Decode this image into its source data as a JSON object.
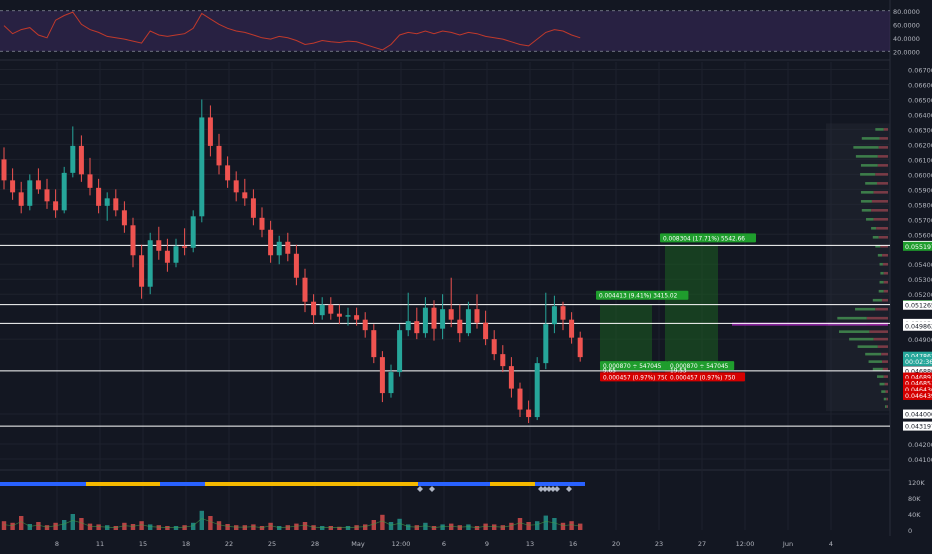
{
  "colors": {
    "bg": "#131722",
    "up": "#26a69a",
    "down": "#ef5350",
    "grid": "#1e222d",
    "axis_text": "#b2b5be",
    "rsi_line": "#c0392b",
    "rsi_band": "#3b2a5c",
    "hline": "#ffffff",
    "profile_up": "#3d7d4a",
    "profile_down": "#7a3b46",
    "profile_poc": "#9c27b0",
    "profile_window": "#2a2e39",
    "range_green": "#1b5e20",
    "label_green": "#1f9d2d",
    "label_red": "#d50000",
    "strip_yellow": "#f5b900",
    "strip_blue": "#2962ff",
    "markers": "#b0b6c3"
  },
  "rsi_panel": {
    "tick_labels": [
      "80.0000",
      "60.0000",
      "40.0000",
      "20.0000"
    ]
  },
  "volume_panel": {
    "tick_labels": [
      "120K",
      "80K",
      "40K",
      "0"
    ]
  },
  "chart_data": {
    "type": "candlestick",
    "title": "",
    "x_tick_labels": [
      "8",
      "11",
      "15",
      "18",
      "22",
      "25",
      "28",
      "May",
      "12:00",
      "6",
      "9",
      "13",
      "16",
      "20",
      "23",
      "27",
      "12:00",
      "Jun",
      "4"
    ],
    "y_tick_labels": [
      "0.067000",
      "0.066000",
      "0.065000",
      "0.064000",
      "0.063000",
      "0.062000",
      "0.061000",
      "0.060000",
      "0.059000",
      "0.058000",
      "0.057000",
      "0.056000",
      "0.054000",
      "0.053000",
      "0.052000",
      "0.049000",
      "0.044000",
      "0.042000",
      "0.041000"
    ],
    "ylim": [
      0.0408,
      0.0675
    ],
    "grid": true,
    "candles": [
      {
        "o": 0.061,
        "h": 0.0618,
        "l": 0.059,
        "c": 0.0596
      },
      {
        "o": 0.0596,
        "h": 0.0604,
        "l": 0.0583,
        "c": 0.0588
      },
      {
        "o": 0.0588,
        "h": 0.0595,
        "l": 0.0574,
        "c": 0.0579
      },
      {
        "o": 0.0579,
        "h": 0.06,
        "l": 0.0576,
        "c": 0.0596
      },
      {
        "o": 0.0596,
        "h": 0.0604,
        "l": 0.0587,
        "c": 0.059
      },
      {
        "o": 0.059,
        "h": 0.0597,
        "l": 0.0577,
        "c": 0.0582
      },
      {
        "o": 0.0582,
        "h": 0.059,
        "l": 0.0571,
        "c": 0.0576
      },
      {
        "o": 0.0576,
        "h": 0.0605,
        "l": 0.0574,
        "c": 0.0601
      },
      {
        "o": 0.0601,
        "h": 0.0632,
        "l": 0.0598,
        "c": 0.0619
      },
      {
        "o": 0.0619,
        "h": 0.0626,
        "l": 0.0595,
        "c": 0.06
      },
      {
        "o": 0.06,
        "h": 0.0611,
        "l": 0.0586,
        "c": 0.0591
      },
      {
        "o": 0.0591,
        "h": 0.0597,
        "l": 0.0574,
        "c": 0.0579
      },
      {
        "o": 0.0579,
        "h": 0.0588,
        "l": 0.0569,
        "c": 0.0584
      },
      {
        "o": 0.0584,
        "h": 0.059,
        "l": 0.0572,
        "c": 0.0576
      },
      {
        "o": 0.0576,
        "h": 0.0582,
        "l": 0.0561,
        "c": 0.0566
      },
      {
        "o": 0.0566,
        "h": 0.0571,
        "l": 0.0538,
        "c": 0.0546
      },
      {
        "o": 0.0546,
        "h": 0.0553,
        "l": 0.0517,
        "c": 0.0525
      },
      {
        "o": 0.0525,
        "h": 0.0561,
        "l": 0.052,
        "c": 0.0556
      },
      {
        "o": 0.0556,
        "h": 0.0565,
        "l": 0.0543,
        "c": 0.0549
      },
      {
        "o": 0.0549,
        "h": 0.0557,
        "l": 0.0535,
        "c": 0.0541
      },
      {
        "o": 0.0541,
        "h": 0.0557,
        "l": 0.0538,
        "c": 0.0552
      },
      {
        "o": 0.0552,
        "h": 0.0564,
        "l": 0.0546,
        "c": 0.0551
      },
      {
        "o": 0.0551,
        "h": 0.0576,
        "l": 0.0548,
        "c": 0.0572
      },
      {
        "o": 0.0572,
        "h": 0.065,
        "l": 0.0568,
        "c": 0.0638
      },
      {
        "o": 0.0638,
        "h": 0.0646,
        "l": 0.0612,
        "c": 0.0619
      },
      {
        "o": 0.0619,
        "h": 0.0627,
        "l": 0.06,
        "c": 0.0606
      },
      {
        "o": 0.0606,
        "h": 0.0612,
        "l": 0.0591,
        "c": 0.0596
      },
      {
        "o": 0.0596,
        "h": 0.0602,
        "l": 0.0582,
        "c": 0.0588
      },
      {
        "o": 0.0588,
        "h": 0.0597,
        "l": 0.0579,
        "c": 0.0584
      },
      {
        "o": 0.0584,
        "h": 0.059,
        "l": 0.0566,
        "c": 0.0571
      },
      {
        "o": 0.0571,
        "h": 0.0578,
        "l": 0.0558,
        "c": 0.0563
      },
      {
        "o": 0.0563,
        "h": 0.0569,
        "l": 0.0541,
        "c": 0.0546
      },
      {
        "o": 0.0546,
        "h": 0.0559,
        "l": 0.054,
        "c": 0.0555
      },
      {
        "o": 0.0555,
        "h": 0.0561,
        "l": 0.0542,
        "c": 0.0547
      },
      {
        "o": 0.0547,
        "h": 0.0553,
        "l": 0.0526,
        "c": 0.0531
      },
      {
        "o": 0.0531,
        "h": 0.0537,
        "l": 0.0508,
        "c": 0.0515
      },
      {
        "o": 0.0515,
        "h": 0.052,
        "l": 0.05,
        "c": 0.0506
      },
      {
        "o": 0.0506,
        "h": 0.0518,
        "l": 0.0503,
        "c": 0.0513
      },
      {
        "o": 0.0513,
        "h": 0.0518,
        "l": 0.0503,
        "c": 0.0507
      },
      {
        "o": 0.0507,
        "h": 0.0513,
        "l": 0.05,
        "c": 0.0505
      },
      {
        "o": 0.0505,
        "h": 0.0511,
        "l": 0.0499,
        "c": 0.0506
      },
      {
        "o": 0.0506,
        "h": 0.0511,
        "l": 0.0499,
        "c": 0.0503
      },
      {
        "o": 0.0503,
        "h": 0.0508,
        "l": 0.0491,
        "c": 0.0496
      },
      {
        "o": 0.0496,
        "h": 0.05,
        "l": 0.0474,
        "c": 0.0478
      },
      {
        "o": 0.0478,
        "h": 0.0482,
        "l": 0.0448,
        "c": 0.0454
      },
      {
        "o": 0.0454,
        "h": 0.0473,
        "l": 0.0451,
        "c": 0.0468
      },
      {
        "o": 0.0468,
        "h": 0.05,
        "l": 0.0465,
        "c": 0.0496
      },
      {
        "o": 0.0496,
        "h": 0.0521,
        "l": 0.0492,
        "c": 0.0502
      },
      {
        "o": 0.0502,
        "h": 0.0511,
        "l": 0.049,
        "c": 0.0494
      },
      {
        "o": 0.0494,
        "h": 0.0518,
        "l": 0.0491,
        "c": 0.0511
      },
      {
        "o": 0.0511,
        "h": 0.0516,
        "l": 0.0489,
        "c": 0.0497
      },
      {
        "o": 0.0497,
        "h": 0.052,
        "l": 0.049,
        "c": 0.051
      },
      {
        "o": 0.051,
        "h": 0.0531,
        "l": 0.0498,
        "c": 0.0503
      },
      {
        "o": 0.0503,
        "h": 0.0513,
        "l": 0.0488,
        "c": 0.0494
      },
      {
        "o": 0.0494,
        "h": 0.0515,
        "l": 0.0492,
        "c": 0.051
      },
      {
        "o": 0.051,
        "h": 0.052,
        "l": 0.0497,
        "c": 0.0501
      },
      {
        "o": 0.0501,
        "h": 0.0509,
        "l": 0.0486,
        "c": 0.049
      },
      {
        "o": 0.049,
        "h": 0.0496,
        "l": 0.0476,
        "c": 0.048
      },
      {
        "o": 0.048,
        "h": 0.0486,
        "l": 0.0468,
        "c": 0.0472
      },
      {
        "o": 0.0472,
        "h": 0.0478,
        "l": 0.0451,
        "c": 0.0457
      },
      {
        "o": 0.0457,
        "h": 0.0461,
        "l": 0.0438,
        "c": 0.0443
      },
      {
        "o": 0.0443,
        "h": 0.0449,
        "l": 0.0434,
        "c": 0.0438
      },
      {
        "o": 0.0438,
        "h": 0.0478,
        "l": 0.0436,
        "c": 0.0474
      },
      {
        "o": 0.0474,
        "h": 0.0521,
        "l": 0.047,
        "c": 0.05
      },
      {
        "o": 0.05,
        "h": 0.0519,
        "l": 0.0494,
        "c": 0.0512
      },
      {
        "o": 0.0512,
        "h": 0.0515,
        "l": 0.0496,
        "c": 0.0503
      },
      {
        "o": 0.0503,
        "h": 0.0508,
        "l": 0.0487,
        "c": 0.0491
      },
      {
        "o": 0.0491,
        "h": 0.0495,
        "l": 0.0475,
        "c": 0.0478
      }
    ],
    "volume": [
      22,
      18,
      35,
      15,
      20,
      12,
      18,
      25,
      40,
      30,
      16,
      14,
      12,
      10,
      18,
      15,
      22,
      14,
      12,
      10,
      10,
      12,
      18,
      48,
      35,
      22,
      15,
      12,
      12,
      14,
      10,
      18,
      10,
      12,
      16,
      20,
      12,
      10,
      10,
      8,
      10,
      12,
      14,
      25,
      38,
      20,
      28,
      14,
      12,
      18,
      10,
      14,
      16,
      12,
      14,
      10,
      16,
      14,
      12,
      18,
      30,
      20,
      22,
      36,
      30,
      18,
      22,
      16
    ],
    "rsi": [
      58,
      46,
      52,
      55,
      44,
      40,
      66,
      73,
      78,
      60,
      52,
      48,
      42,
      40,
      38,
      35,
      32,
      50,
      44,
      42,
      44,
      46,
      54,
      76,
      68,
      60,
      54,
      50,
      48,
      44,
      40,
      38,
      42,
      40,
      36,
      30,
      32,
      36,
      34,
      33,
      35,
      34,
      30,
      26,
      22,
      30,
      44,
      48,
      46,
      50,
      46,
      50,
      48,
      44,
      48,
      46,
      42,
      40,
      38,
      34,
      30,
      28,
      38,
      48,
      52,
      50,
      44,
      40
    ],
    "horizontal_levels": [
      0.055257,
      0.051304,
      0.050054,
      0.04688,
      0.043197
    ],
    "price_labels": [
      {
        "text": "0.055257",
        "price": 0.055257
      },
      {
        "text": "0.055197",
        "price": 0.055197
      },
      {
        "text": "0.051304",
        "price": 0.051304
      },
      {
        "text": "0.051265",
        "price": 0.051265
      },
      {
        "text": "0.050054",
        "price": 0.050054
      },
      {
        "text": "0.049862",
        "price": 0.049862
      },
      {
        "text": "0.047862",
        "price": 0.047862
      },
      {
        "text": "00:02:36",
        "price": 0.047512
      },
      {
        "text": "0.046880",
        "price": 0.04688
      },
      {
        "text": "0.046893",
        "price": 0.04647
      },
      {
        "text": "0.046853",
        "price": 0.04606
      },
      {
        "text": "0.046436",
        "price": 0.04565
      },
      {
        "text": "0.046439",
        "price": 0.04524
      },
      {
        "text": "0.044000",
        "price": 0.044
      },
      {
        "text": "0.043197",
        "price": 0.043197
      }
    ],
    "annotations": [
      {
        "text": "0.008304 (17.71%) 5542.66",
        "price": 0.05573,
        "kind": "target"
      },
      {
        "text": "0.004413 (9.41%) 3415.02",
        "price": 0.0519,
        "kind": "target"
      },
      {
        "text": "0.000870 ÷ 547045",
        "price": 0.0472,
        "kind": "entry"
      },
      {
        "text": "9.65",
        "price": 0.0469,
        "kind": "ratio"
      },
      {
        "text": "0.000457 (0.97%) 750",
        "price": 0.04645,
        "kind": "stop"
      },
      {
        "text": "0.000870 ÷ 547045",
        "price": 0.0472,
        "kind": "entry"
      },
      {
        "text": "19.53",
        "price": 0.0469,
        "kind": "ratio"
      },
      {
        "text": "0.000457 (0.97%) 750",
        "price": 0.04645,
        "kind": "stop"
      }
    ],
    "volume_profile": [
      {
        "p": 0.063,
        "up": 20,
        "dn": 10
      },
      {
        "p": 0.0624,
        "up": 42,
        "dn": 20
      },
      {
        "p": 0.0618,
        "up": 60,
        "dn": 22
      },
      {
        "p": 0.0612,
        "up": 52,
        "dn": 24
      },
      {
        "p": 0.0606,
        "up": 40,
        "dn": 24
      },
      {
        "p": 0.06,
        "up": 36,
        "dn": 30
      },
      {
        "p": 0.0594,
        "up": 28,
        "dn": 26
      },
      {
        "p": 0.0588,
        "up": 30,
        "dn": 34
      },
      {
        "p": 0.0582,
        "up": 26,
        "dn": 38
      },
      {
        "p": 0.0576,
        "up": 22,
        "dn": 40
      },
      {
        "p": 0.057,
        "up": 18,
        "dn": 34
      },
      {
        "p": 0.0564,
        "up": 12,
        "dn": 28
      },
      {
        "p": 0.0558,
        "up": 14,
        "dn": 22
      },
      {
        "p": 0.0552,
        "up": 12,
        "dn": 18
      },
      {
        "p": 0.0546,
        "up": 10,
        "dn": 14
      },
      {
        "p": 0.054,
        "up": 8,
        "dn": 12
      },
      {
        "p": 0.0534,
        "up": 8,
        "dn": 10
      },
      {
        "p": 0.0528,
        "up": 10,
        "dn": 10
      },
      {
        "p": 0.0522,
        "up": 12,
        "dn": 10
      },
      {
        "p": 0.0516,
        "up": 22,
        "dn": 14
      },
      {
        "p": 0.051,
        "up": 48,
        "dn": 30
      },
      {
        "p": 0.0504,
        "up": 70,
        "dn": 50
      },
      {
        "p": 0.05,
        "up": 92,
        "dn": 50
      },
      {
        "p": 0.0495,
        "up": 72,
        "dn": 44
      },
      {
        "p": 0.049,
        "up": 58,
        "dn": 34
      },
      {
        "p": 0.0485,
        "up": 48,
        "dn": 24
      },
      {
        "p": 0.048,
        "up": 38,
        "dn": 16
      },
      {
        "p": 0.0475,
        "up": 32,
        "dn": 14
      },
      {
        "p": 0.047,
        "up": 24,
        "dn": 12
      },
      {
        "p": 0.0465,
        "up": 16,
        "dn": 10
      },
      {
        "p": 0.046,
        "up": 12,
        "dn": 8
      },
      {
        "p": 0.0455,
        "up": 10,
        "dn": 6
      },
      {
        "p": 0.045,
        "up": 6,
        "dn": 4
      },
      {
        "p": 0.0445,
        "up": 4,
        "dn": 3
      }
    ]
  }
}
